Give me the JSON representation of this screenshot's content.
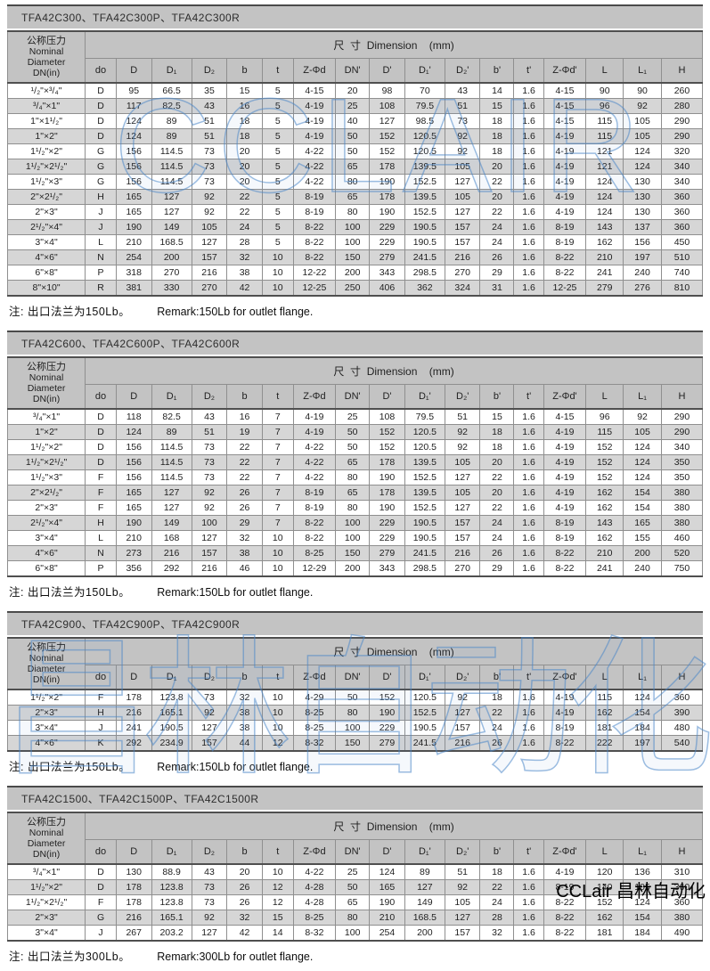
{
  "page": {
    "dimension_header": "尺  寸  Dimension    (mm)",
    "row_header_lines": [
      "公称压力",
      "Nominal",
      "Diameter",
      "DN(in)"
    ],
    "columns": [
      "do",
      "D",
      "D₁",
      "D₂",
      "b",
      "t",
      "Z-Φd",
      "DN'",
      "D'",
      "D₁'",
      "D₂'",
      "b'",
      "t'",
      "Z-Φd'",
      "L",
      "L₁",
      "H"
    ]
  },
  "sections": [
    {
      "title": "TFA42C300、TFA42C300P、TFA42C300R",
      "note_zh": "注: 出口法兰为150Lb。",
      "note_en": "Remark:150Lb for outlet flange.",
      "rows": [
        [
          "¹/₂\"×³/₄\"",
          "D",
          "95",
          "66.5",
          "35",
          "15",
          "5",
          "4-15",
          "20",
          "98",
          "70",
          "43",
          "14",
          "1.6",
          "4-15",
          "90",
          "90",
          "260"
        ],
        [
          "³/₄\"×1\"",
          "D",
          "117",
          "82.5",
          "43",
          "16",
          "5",
          "4-19",
          "25",
          "108",
          "79.5",
          "51",
          "15",
          "1.6",
          "4-15",
          "96",
          "92",
          "280"
        ],
        [
          "1\"×1¹/₂\"",
          "D",
          "124",
          "89",
          "51",
          "18",
          "5",
          "4-19",
          "40",
          "127",
          "98.5",
          "73",
          "18",
          "1.6",
          "4-15",
          "115",
          "105",
          "290"
        ],
        [
          "1\"×2\"",
          "D",
          "124",
          "89",
          "51",
          "18",
          "5",
          "4-19",
          "50",
          "152",
          "120.5",
          "92",
          "18",
          "1.6",
          "4-19",
          "115",
          "105",
          "290"
        ],
        [
          "1¹/₂\"×2\"",
          "G",
          "156",
          "114.5",
          "73",
          "20",
          "5",
          "4-22",
          "50",
          "152",
          "120.5",
          "92",
          "18",
          "1.6",
          "4-19",
          "121",
          "124",
          "320"
        ],
        [
          "1¹/₂\"×2¹/₂\"",
          "G",
          "156",
          "114.5",
          "73",
          "20",
          "5",
          "4-22",
          "65",
          "178",
          "139.5",
          "105",
          "20",
          "1.6",
          "4-19",
          "121",
          "124",
          "340"
        ],
        [
          "1¹/₂\"×3\"",
          "G",
          "156",
          "114.5",
          "73",
          "20",
          "5",
          "4-22",
          "80",
          "190",
          "152.5",
          "127",
          "22",
          "1.6",
          "4-19",
          "124",
          "130",
          "340"
        ],
        [
          "2\"×2¹/₂\"",
          "H",
          "165",
          "127",
          "92",
          "22",
          "5",
          "8-19",
          "65",
          "178",
          "139.5",
          "105",
          "20",
          "1.6",
          "4-19",
          "124",
          "130",
          "360"
        ],
        [
          "2\"×3\"",
          "J",
          "165",
          "127",
          "92",
          "22",
          "5",
          "8-19",
          "80",
          "190",
          "152.5",
          "127",
          "22",
          "1.6",
          "4-19",
          "124",
          "130",
          "360"
        ],
        [
          "2¹/₂\"×4\"",
          "J",
          "190",
          "149",
          "105",
          "24",
          "5",
          "8-22",
          "100",
          "229",
          "190.5",
          "157",
          "24",
          "1.6",
          "8-19",
          "143",
          "137",
          "360"
        ],
        [
          "3\"×4\"",
          "L",
          "210",
          "168.5",
          "127",
          "28",
          "5",
          "8-22",
          "100",
          "229",
          "190.5",
          "157",
          "24",
          "1.6",
          "8-19",
          "162",
          "156",
          "450"
        ],
        [
          "4\"×6\"",
          "N",
          "254",
          "200",
          "157",
          "32",
          "10",
          "8-22",
          "150",
          "279",
          "241.5",
          "216",
          "26",
          "1.6",
          "8-22",
          "210",
          "197",
          "510"
        ],
        [
          "6\"×8\"",
          "P",
          "318",
          "270",
          "216",
          "38",
          "10",
          "12-22",
          "200",
          "343",
          "298.5",
          "270",
          "29",
          "1.6",
          "8-22",
          "241",
          "240",
          "740"
        ],
        [
          "8\"×10\"",
          "R",
          "381",
          "330",
          "270",
          "42",
          "10",
          "12-25",
          "250",
          "406",
          "362",
          "324",
          "31",
          "1.6",
          "12-25",
          "279",
          "276",
          "810"
        ]
      ]
    },
    {
      "title": "TFA42C600、TFA42C600P、TFA42C600R",
      "note_zh": "注: 出口法兰为150Lb。",
      "note_en": "Remark:150Lb for outlet flange.",
      "rows": [
        [
          "³/₄\"×1\"",
          "D",
          "118",
          "82.5",
          "43",
          "16",
          "7",
          "4-19",
          "25",
          "108",
          "79.5",
          "51",
          "15",
          "1.6",
          "4-15",
          "96",
          "92",
          "290"
        ],
        [
          "1\"×2\"",
          "D",
          "124",
          "89",
          "51",
          "19",
          "7",
          "4-19",
          "50",
          "152",
          "120.5",
          "92",
          "18",
          "1.6",
          "4-19",
          "115",
          "105",
          "290"
        ],
        [
          "1¹/₂\"×2\"",
          "D",
          "156",
          "114.5",
          "73",
          "22",
          "7",
          "4-22",
          "50",
          "152",
          "120.5",
          "92",
          "18",
          "1.6",
          "4-19",
          "152",
          "124",
          "340"
        ],
        [
          "1¹/₂\"×2¹/₂\"",
          "D",
          "156",
          "114.5",
          "73",
          "22",
          "7",
          "4-22",
          "65",
          "178",
          "139.5",
          "105",
          "20",
          "1.6",
          "4-19",
          "152",
          "124",
          "350"
        ],
        [
          "1¹/₂\"×3\"",
          "F",
          "156",
          "114.5",
          "73",
          "22",
          "7",
          "4-22",
          "80",
          "190",
          "152.5",
          "127",
          "22",
          "1.6",
          "4-19",
          "152",
          "124",
          "350"
        ],
        [
          "2\"×2¹/₂\"",
          "F",
          "165",
          "127",
          "92",
          "26",
          "7",
          "8-19",
          "65",
          "178",
          "139.5",
          "105",
          "20",
          "1.6",
          "4-19",
          "162",
          "154",
          "380"
        ],
        [
          "2\"×3\"",
          "F",
          "165",
          "127",
          "92",
          "26",
          "7",
          "8-19",
          "80",
          "190",
          "152.5",
          "127",
          "22",
          "1.6",
          "4-19",
          "162",
          "154",
          "380"
        ],
        [
          "2¹/₂\"×4\"",
          "H",
          "190",
          "149",
          "100",
          "29",
          "7",
          "8-22",
          "100",
          "229",
          "190.5",
          "157",
          "24",
          "1.6",
          "8-19",
          "143",
          "165",
          "380"
        ],
        [
          "3\"×4\"",
          "L",
          "210",
          "168",
          "127",
          "32",
          "10",
          "8-22",
          "100",
          "229",
          "190.5",
          "157",
          "24",
          "1.6",
          "8-19",
          "162",
          "155",
          "460"
        ],
        [
          "4\"×6\"",
          "N",
          "273",
          "216",
          "157",
          "38",
          "10",
          "8-25",
          "150",
          "279",
          "241.5",
          "216",
          "26",
          "1.6",
          "8-22",
          "210",
          "200",
          "520"
        ],
        [
          "6\"×8\"",
          "P",
          "356",
          "292",
          "216",
          "46",
          "10",
          "12-29",
          "200",
          "343",
          "298.5",
          "270",
          "29",
          "1.6",
          "8-22",
          "241",
          "240",
          "750"
        ]
      ]
    },
    {
      "title": "TFA42C900、TFA42C900P、TFA42C900R",
      "note_zh": "注: 出口法兰为150Lb。",
      "note_en": "Remark:150Lb for outlet flange.",
      "rows": [
        [
          "1¹/₂\"×2\"",
          "F",
          "178",
          "123.8",
          "73",
          "32",
          "10",
          "4-29",
          "50",
          "152",
          "120.5",
          "92",
          "18",
          "1.6",
          "4-19",
          "115",
          "124",
          "360"
        ],
        [
          "2\"×3\"",
          "H",
          "216",
          "165.1",
          "92",
          "38",
          "10",
          "8-25",
          "80",
          "190",
          "152.5",
          "127",
          "22",
          "1.6",
          "4-19",
          "162",
          "154",
          "390"
        ],
        [
          "3\"×4\"",
          "J",
          "241",
          "190.5",
          "127",
          "38",
          "10",
          "8-25",
          "100",
          "229",
          "190.5",
          "157",
          "24",
          "1.6",
          "8-19",
          "181",
          "184",
          "480"
        ],
        [
          "4\"×6\"",
          "K",
          "292",
          "234.9",
          "157",
          "44",
          "12",
          "8-32",
          "150",
          "279",
          "241.5",
          "216",
          "26",
          "1.6",
          "8-22",
          "222",
          "197",
          "540"
        ]
      ]
    },
    {
      "title": "TFA42C1500、TFA42C1500P、TFA42C1500R",
      "note_zh": "注: 出口法兰为300Lb。",
      "note_en": "Remark:300Lb for outlet flange.",
      "rows": [
        [
          "³/₄\"×1\"",
          "D",
          "130",
          "88.9",
          "43",
          "20",
          "10",
          "4-22",
          "25",
          "124",
          "89",
          "51",
          "18",
          "1.6",
          "4-19",
          "120",
          "136",
          "310"
        ],
        [
          "1¹/₂\"×2\"",
          "D",
          "178",
          "123.8",
          "73",
          "26",
          "12",
          "4-28",
          "50",
          "165",
          "127",
          "92",
          "22",
          "1.6",
          "8-19",
          "140",
          "105",
          "360"
        ],
        [
          "1¹/₂\"×2¹/₂\"",
          "F",
          "178",
          "123.8",
          "73",
          "26",
          "12",
          "4-28",
          "65",
          "190",
          "149",
          "105",
          "24",
          "1.6",
          "8-22",
          "152",
          "124",
          "360"
        ],
        [
          "2\"×3\"",
          "G",
          "216",
          "165.1",
          "92",
          "32",
          "15",
          "8-25",
          "80",
          "210",
          "168.5",
          "127",
          "28",
          "1.6",
          "8-22",
          "162",
          "154",
          "380"
        ],
        [
          "3\"×4\"",
          "J",
          "267",
          "203.2",
          "127",
          "42",
          "14",
          "8-32",
          "100",
          "254",
          "200",
          "157",
          "32",
          "1.6",
          "8-22",
          "181",
          "184",
          "490"
        ]
      ]
    }
  ],
  "watermarks": {
    "top": "CCLAIR",
    "bottom": "昌林自动化",
    "color": "#5b9bd5"
  },
  "brand": "CCLair 昌林自动化"
}
